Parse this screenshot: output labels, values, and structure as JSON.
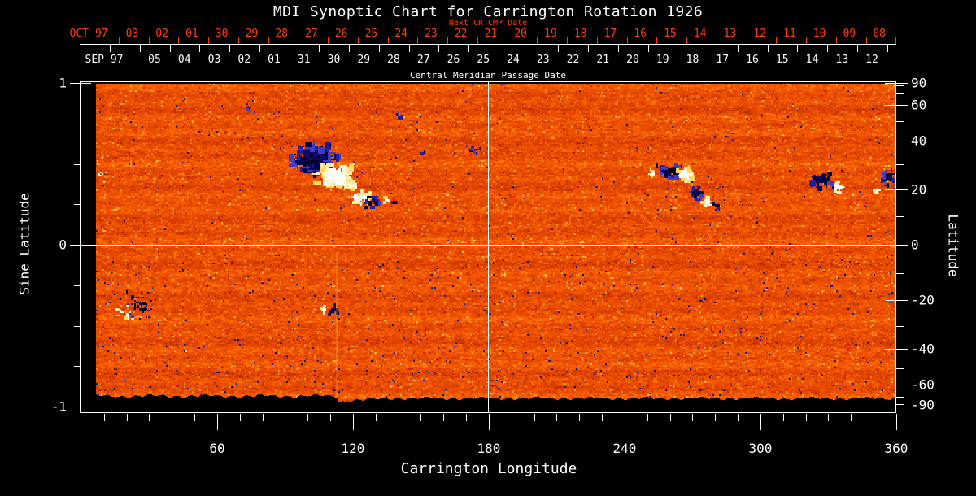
{
  "title": "MDI Synoptic Chart for Carrington Rotation 1926",
  "colors": {
    "background": "#000000",
    "axis_foreground": "#ffffff",
    "next_cr_red": "#ff3d00",
    "field_base_orange": "#e84800",
    "negative_polarity": "#000040",
    "positive_polarity": "#ffffff"
  },
  "top_axis": {
    "next_cr_label": "Next CR CMP Date",
    "next_cr_month": "OCT 97",
    "next_cr_days": [
      "03",
      "02",
      "01",
      "30",
      "29",
      "28",
      "27",
      "26",
      "25",
      "24",
      "23",
      "22",
      "21",
      "20",
      "19",
      "18",
      "17",
      "16",
      "15",
      "14",
      "13",
      "12",
      "11",
      "10",
      "09",
      "08"
    ],
    "cmp_label": "Central Meridian Passage Date",
    "cmp_month": "SEP 97",
    "cmp_days": [
      "05",
      "04",
      "03",
      "02",
      "01",
      "31",
      "30",
      "29",
      "28",
      "27",
      "26",
      "25",
      "24",
      "23",
      "22",
      "21",
      "20",
      "19",
      "18",
      "17",
      "16",
      "15",
      "14",
      "13",
      "12"
    ]
  },
  "left_axis": {
    "label": "Sine Latitude",
    "tick_labels": [
      "1",
      "0",
      "-1"
    ],
    "tick_values": [
      1,
      0,
      -1
    ],
    "minor_tick_values": [
      0.75,
      0.5,
      0.25,
      -0.25,
      -0.5,
      -0.75
    ]
  },
  "right_axis": {
    "label": "Latitude",
    "tick_labels": [
      "90",
      "60",
      "40",
      "20",
      "0",
      "-20",
      "-40",
      "-60",
      "-90"
    ],
    "tick_values": [
      90,
      60,
      40,
      20,
      0,
      -20,
      -40,
      -60,
      -90
    ]
  },
  "bottom_axis": {
    "label": "Carrington Longitude",
    "tick_labels": [
      "60",
      "120",
      "180",
      "240",
      "300",
      "360"
    ],
    "tick_values": [
      60,
      120,
      180,
      240,
      300,
      360
    ]
  },
  "chart_data": {
    "type": "heatmap",
    "title": "MDI Synoptic Chart for Carrington Rotation 1926",
    "xlabel": "Carrington Longitude",
    "ylabel_left": "Sine Latitude",
    "ylabel_right": "Latitude",
    "xlim": [
      0,
      360
    ],
    "ylim_sine": [
      -1,
      1
    ],
    "x_ticks": [
      60,
      120,
      180,
      240,
      300,
      360
    ],
    "x_minor_step_deg": 10,
    "sine_ticks": [
      1,
      0,
      -1
    ],
    "latitude_ticks": [
      90,
      60,
      40,
      20,
      0,
      -20,
      -40,
      -60,
      -90
    ],
    "gridlines": {
      "vertical_at_longitude": 180,
      "horizontal_at_sine_latitude": 0
    },
    "cmp_dates": {
      "month_start": "SEP 97",
      "days": [
        "05",
        "04",
        "03",
        "02",
        "01",
        "31",
        "30",
        "29",
        "28",
        "27",
        "26",
        "25",
        "24",
        "23",
        "22",
        "21",
        "20",
        "19",
        "18",
        "17",
        "16",
        "15",
        "14",
        "13",
        "12"
      ]
    },
    "next_cr_cmp_dates": {
      "month_start": "OCT 97",
      "days": [
        "03",
        "02",
        "01",
        "30",
        "29",
        "28",
        "27",
        "26",
        "25",
        "24",
        "23",
        "22",
        "21",
        "20",
        "19",
        "18",
        "17",
        "16",
        "15",
        "14",
        "13",
        "12",
        "11",
        "10",
        "09",
        "08"
      ]
    },
    "description": "Full-surface synoptic magnetogram map: speckled orange-red quiet-sun field with bipolar active regions; dark navy blobs are negative polarity, white-yellow blobs are positive polarity. Black no-data band along the bottom edge with a step discontinuity near longitude 113.",
    "features": [
      {
        "polarity": "negative",
        "lon": 103,
        "sine_lat": 0.53,
        "rlon": 11,
        "rsin": 0.095,
        "n": 150,
        "smax": 9
      },
      {
        "polarity": "positive",
        "lon": 112,
        "sine_lat": 0.42,
        "rlon": 10,
        "rsin": 0.085,
        "n": 135,
        "smax": 9
      },
      {
        "polarity": "positive",
        "lon": 124,
        "sine_lat": 0.285,
        "rlon": 5,
        "rsin": 0.045,
        "n": 45,
        "smax": 6
      },
      {
        "polarity": "negative",
        "lon": 128.5,
        "sine_lat": 0.26,
        "rlon": 4,
        "rsin": 0.04,
        "n": 26,
        "smax": 5
      },
      {
        "polarity": "positive",
        "lon": 134.5,
        "sine_lat": 0.27,
        "rlon": 1.6,
        "rsin": 0.02,
        "n": 10,
        "smax": 4
      },
      {
        "polarity": "negative",
        "lon": 138,
        "sine_lat": 0.26,
        "rlon": 1.6,
        "rsin": 0.02,
        "n": 12,
        "smax": 4
      },
      {
        "polarity": "negative",
        "lon": 261,
        "sine_lat": 0.45,
        "rlon": 7,
        "rsin": 0.05,
        "n": 60,
        "smax": 6
      },
      {
        "polarity": "positive",
        "lon": 267,
        "sine_lat": 0.43,
        "rlon": 4.5,
        "rsin": 0.045,
        "n": 45,
        "smax": 7
      },
      {
        "polarity": "positive",
        "lon": 252.5,
        "sine_lat": 0.44,
        "rlon": 2,
        "rsin": 0.03,
        "n": 10,
        "smax": 4
      },
      {
        "polarity": "negative",
        "lon": 272,
        "sine_lat": 0.315,
        "rlon": 3.5,
        "rsin": 0.04,
        "n": 28,
        "smax": 5
      },
      {
        "polarity": "positive",
        "lon": 276.5,
        "sine_lat": 0.26,
        "rlon": 2.5,
        "rsin": 0.035,
        "n": 18,
        "smax": 5
      },
      {
        "polarity": "negative",
        "lon": 281,
        "sine_lat": 0.235,
        "rlon": 2,
        "rsin": 0.025,
        "n": 10,
        "smax": 4
      },
      {
        "polarity": "negative",
        "lon": 327,
        "sine_lat": 0.4,
        "rlon": 6,
        "rsin": 0.055,
        "n": 45,
        "smax": 5
      },
      {
        "polarity": "positive",
        "lon": 334.5,
        "sine_lat": 0.355,
        "rlon": 2.5,
        "rsin": 0.035,
        "n": 16,
        "smax": 6
      },
      {
        "polarity": "negative",
        "lon": 356.5,
        "sine_lat": 0.405,
        "rlon": 4,
        "rsin": 0.065,
        "n": 32,
        "smax": 5
      },
      {
        "polarity": "positive",
        "lon": 352,
        "sine_lat": 0.33,
        "rlon": 2,
        "rsin": 0.02,
        "n": 6,
        "smax": 3
      },
      {
        "polarity": "negative",
        "lon": 26,
        "sine_lat": -0.36,
        "rlon": 9,
        "rsin": 0.11,
        "n": 42,
        "smax": 3
      },
      {
        "polarity": "positive",
        "lon": 19.5,
        "sine_lat": -0.43,
        "rlon": 5,
        "rsin": 0.06,
        "n": 22,
        "smax": 3
      },
      {
        "polarity": "positive",
        "lon": 107,
        "sine_lat": -0.4,
        "rlon": 2,
        "rsin": 0.03,
        "n": 10,
        "smax": 4
      },
      {
        "polarity": "negative",
        "lon": 111.5,
        "sine_lat": -0.405,
        "rlon": 3,
        "rsin": 0.04,
        "n": 16,
        "smax": 3
      },
      {
        "polarity": "negative",
        "lon": 140,
        "sine_lat": 0.8,
        "rlon": 1.5,
        "rsin": 0.02,
        "n": 7,
        "smax": 3
      },
      {
        "polarity": "negative",
        "lon": 173,
        "sine_lat": 0.585,
        "rlon": 3,
        "rsin": 0.025,
        "n": 10,
        "smax": 3
      },
      {
        "polarity": "positive",
        "lon": 8,
        "sine_lat": 0.45,
        "rlon": 3,
        "rsin": 0.12,
        "n": 12,
        "smax": 2
      },
      {
        "polarity": "negative",
        "lon": 73.5,
        "sine_lat": 0.85,
        "rlon": 1.5,
        "rsin": 0.02,
        "n": 5,
        "smax": 3
      },
      {
        "polarity": "negative",
        "lon": 151,
        "sine_lat": 0.57,
        "rlon": 1.5,
        "rsin": 0.02,
        "n": 6,
        "smax": 3
      }
    ]
  }
}
